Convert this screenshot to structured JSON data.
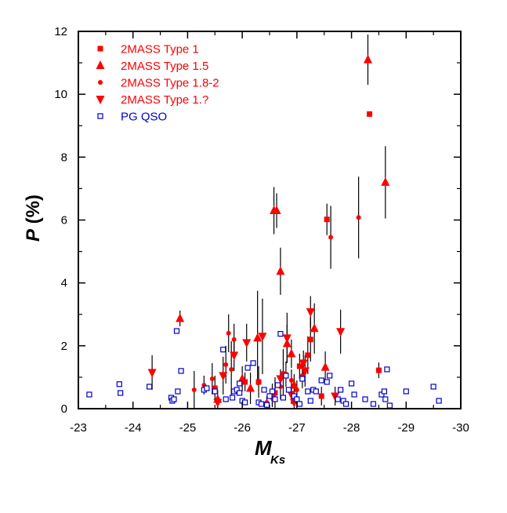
{
  "chart_data": {
    "type": "scatter",
    "title": "",
    "xlabel": "M",
    "xlabel_sub": "Ks",
    "ylabel": "P (%)",
    "xlim": [
      -23,
      -30
    ],
    "ylim": [
      0,
      12
    ],
    "x_ticks": [
      -23,
      -24,
      -25,
      -26,
      -27,
      -28,
      -29,
      -30
    ],
    "x_tick_labels": [
      "-23",
      "-24",
      "-25",
      "-26",
      "-27",
      "-28",
      "-29",
      "-30"
    ],
    "y_ticks": [
      0,
      2,
      4,
      6,
      8,
      10,
      12
    ],
    "y_tick_labels": [
      "0",
      "2",
      "4",
      "6",
      "8",
      "10",
      "12"
    ],
    "grid": false,
    "legend_position": "top-left",
    "colors": {
      "twomass": "#ff0000",
      "pgqso": "#0000cc",
      "errorbar": "#000000"
    },
    "series": [
      {
        "name": "2MASS Type 1",
        "marker": "square",
        "points": [
          {
            "x": -28.33,
            "y": 9.37,
            "err": 0.0
          },
          {
            "x": -27.55,
            "y": 6.02,
            "err": 0.5
          },
          {
            "x": -28.5,
            "y": 1.22,
            "err": 0.25
          },
          {
            "x": -27.2,
            "y": 1.7,
            "err": 0.6
          },
          {
            "x": -27.05,
            "y": 1.35,
            "err": 0.4
          },
          {
            "x": -26.75,
            "y": 1.1,
            "err": 0.8
          },
          {
            "x": -26.3,
            "y": 0.85,
            "err": 0.5
          },
          {
            "x": -26.6,
            "y": 0.5,
            "err": 0.5
          },
          {
            "x": -27.25,
            "y": 2.2,
            "err": 0.7
          },
          {
            "x": -25.5,
            "y": 0.65,
            "err": 0.4
          },
          {
            "x": -26.05,
            "y": 0.85,
            "err": 0.3
          },
          {
            "x": -27.45,
            "y": 0.4,
            "err": 0.3
          }
        ]
      },
      {
        "name": "2MASS Type 1.5",
        "marker": "triangle-up",
        "points": [
          {
            "x": -28.3,
            "y": 11.1,
            "err": 0.8
          },
          {
            "x": -28.62,
            "y": 7.2,
            "err": 1.15
          },
          {
            "x": -26.58,
            "y": 6.3,
            "err": 0.75
          },
          {
            "x": -26.63,
            "y": 6.3,
            "err": 0.55
          },
          {
            "x": -26.7,
            "y": 4.37,
            "err": 0.75
          },
          {
            "x": -24.86,
            "y": 2.87,
            "err": 0.25
          },
          {
            "x": -27.32,
            "y": 2.55,
            "err": 0.8
          },
          {
            "x": -26.82,
            "y": 2.07,
            "err": 0.6
          },
          {
            "x": -26.28,
            "y": 2.25,
            "err": 1.5
          },
          {
            "x": -26.9,
            "y": 1.75,
            "err": 0.45
          },
          {
            "x": -27.52,
            "y": 1.32,
            "err": 0.5
          },
          {
            "x": -26.0,
            "y": 0.95,
            "err": 0.4
          },
          {
            "x": -26.15,
            "y": 0.65,
            "err": 0.5
          },
          {
            "x": -25.55,
            "y": 0.3,
            "err": 0.3
          },
          {
            "x": -26.95,
            "y": 0.75,
            "err": 0.35
          }
        ]
      },
      {
        "name": "2MASS Type 1.8-2",
        "marker": "circle",
        "points": [
          {
            "x": -28.13,
            "y": 6.08,
            "err": 1.3
          },
          {
            "x": -27.62,
            "y": 5.45,
            "err": 1.0
          },
          {
            "x": -25.75,
            "y": 2.4,
            "err": 0.6
          },
          {
            "x": -25.85,
            "y": 2.2,
            "err": 0.5
          },
          {
            "x": -25.7,
            "y": 1.4,
            "err": 0.6
          },
          {
            "x": -25.8,
            "y": 1.25,
            "err": 0.9
          },
          {
            "x": -25.12,
            "y": 0.6,
            "err": 0.6
          },
          {
            "x": -25.3,
            "y": 0.75,
            "err": 0.3
          },
          {
            "x": -26.8,
            "y": 1.1,
            "err": 0.4
          },
          {
            "x": -26.9,
            "y": 0.9,
            "err": 0.35
          },
          {
            "x": -26.55,
            "y": 0.45,
            "err": 0.35
          },
          {
            "x": -26.45,
            "y": 0.2,
            "err": 0.2
          },
          {
            "x": -27.1,
            "y": 1.05,
            "err": 0.4
          },
          {
            "x": -27.0,
            "y": 0.6,
            "err": 0.3
          },
          {
            "x": -25.45,
            "y": 0.95,
            "err": 0.5
          },
          {
            "x": -26.7,
            "y": 0.7,
            "err": 0.4
          }
        ]
      },
      {
        "name": "2MASS Type 1.?",
        "marker": "triangle-down",
        "points": [
          {
            "x": -27.25,
            "y": 3.08,
            "err": 0.5
          },
          {
            "x": -27.8,
            "y": 2.45,
            "err": 0.7
          },
          {
            "x": -26.37,
            "y": 2.3,
            "err": 1.2
          },
          {
            "x": -26.08,
            "y": 2.1,
            "err": 0.6
          },
          {
            "x": -26.82,
            "y": 2.25,
            "err": 0.8
          },
          {
            "x": -25.85,
            "y": 1.7,
            "err": 0.5
          },
          {
            "x": -24.35,
            "y": 1.15,
            "err": 0.55
          },
          {
            "x": -27.15,
            "y": 1.2,
            "err": 0.5
          },
          {
            "x": -27.12,
            "y": 1.45,
            "err": 0.4
          },
          {
            "x": -26.7,
            "y": 0.95,
            "err": 0.3
          },
          {
            "x": -25.65,
            "y": 1.05,
            "err": 0.6
          },
          {
            "x": -26.9,
            "y": 0.45,
            "err": 0.3
          },
          {
            "x": -26.95,
            "y": 0.2,
            "err": 0.2
          },
          {
            "x": -27.7,
            "y": 0.4,
            "err": 0.3
          },
          {
            "x": -25.55,
            "y": 0.2,
            "err": 0.2
          },
          {
            "x": -26.55,
            "y": 0.35,
            "err": 0.3
          }
        ]
      },
      {
        "name": "PG QSO",
        "marker": "open-square",
        "points": [
          {
            "x": -23.2,
            "y": 0.45
          },
          {
            "x": -23.75,
            "y": 0.78
          },
          {
            "x": -23.77,
            "y": 0.5
          },
          {
            "x": -24.3,
            "y": 0.7
          },
          {
            "x": -24.7,
            "y": 0.35
          },
          {
            "x": -24.72,
            "y": 0.25
          },
          {
            "x": -24.75,
            "y": 0.3
          },
          {
            "x": -24.8,
            "y": 2.47
          },
          {
            "x": -24.82,
            "y": 0.55
          },
          {
            "x": -24.88,
            "y": 1.2
          },
          {
            "x": -25.3,
            "y": 0.6
          },
          {
            "x": -25.35,
            "y": 0.65
          },
          {
            "x": -25.5,
            "y": 0.55
          },
          {
            "x": -25.65,
            "y": 1.88
          },
          {
            "x": -25.7,
            "y": 0.3
          },
          {
            "x": -25.82,
            "y": 0.35
          },
          {
            "x": -25.85,
            "y": 0.55
          },
          {
            "x": -25.9,
            "y": 0.6
          },
          {
            "x": -25.95,
            "y": 0.5
          },
          {
            "x": -26.0,
            "y": 0.25
          },
          {
            "x": -26.05,
            "y": 0.2
          },
          {
            "x": -26.1,
            "y": 1.3
          },
          {
            "x": -26.2,
            "y": 1.45
          },
          {
            "x": -26.3,
            "y": 0.2
          },
          {
            "x": -26.35,
            "y": 0.15
          },
          {
            "x": -26.45,
            "y": 0.12
          },
          {
            "x": -26.5,
            "y": 0.4
          },
          {
            "x": -26.55,
            "y": 0.55
          },
          {
            "x": -26.6,
            "y": 0.3
          },
          {
            "x": -26.65,
            "y": 0.75
          },
          {
            "x": -26.7,
            "y": 2.38
          },
          {
            "x": -26.75,
            "y": 0.35
          },
          {
            "x": -26.8,
            "y": 1.05
          },
          {
            "x": -26.85,
            "y": 0.6
          },
          {
            "x": -26.95,
            "y": 0.4
          },
          {
            "x": -27.0,
            "y": 0.3
          },
          {
            "x": -27.05,
            "y": 0.15
          },
          {
            "x": -27.1,
            "y": 0.95
          },
          {
            "x": -27.2,
            "y": 0.55
          },
          {
            "x": -27.25,
            "y": 0.25
          },
          {
            "x": -27.3,
            "y": 0.6
          },
          {
            "x": -27.35,
            "y": 0.55
          },
          {
            "x": -27.45,
            "y": 0.9
          },
          {
            "x": -27.55,
            "y": 0.85
          },
          {
            "x": -27.6,
            "y": 1.05
          },
          {
            "x": -27.75,
            "y": 0.3
          },
          {
            "x": -27.8,
            "y": 0.6
          },
          {
            "x": -27.85,
            "y": 0.25
          },
          {
            "x": -27.9,
            "y": 0.15
          },
          {
            "x": -28.0,
            "y": 0.8
          },
          {
            "x": -28.05,
            "y": 0.45
          },
          {
            "x": -28.25,
            "y": 0.3
          },
          {
            "x": -28.4,
            "y": 0.15
          },
          {
            "x": -28.55,
            "y": 0.45
          },
          {
            "x": -28.6,
            "y": 0.55
          },
          {
            "x": -28.65,
            "y": 1.25
          },
          {
            "x": -28.62,
            "y": 0.3
          },
          {
            "x": -28.7,
            "y": 0.1
          },
          {
            "x": -29.0,
            "y": 0.55
          },
          {
            "x": -29.5,
            "y": 0.7
          },
          {
            "x": -29.6,
            "y": 0.25
          },
          {
            "x": -26.4,
            "y": 0.6
          },
          {
            "x": -25.95,
            "y": 0.8
          }
        ]
      }
    ]
  }
}
